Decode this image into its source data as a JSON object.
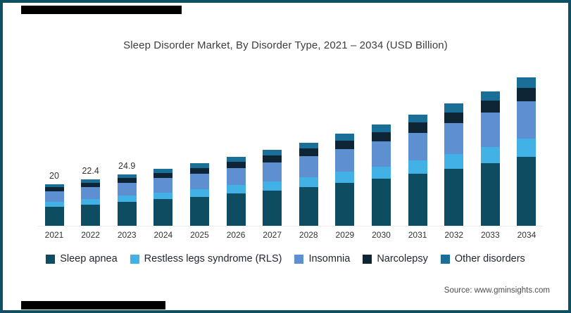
{
  "theme": {
    "frame_border": "#0d4f63"
  },
  "source": "Source: www.gminsights.com",
  "chart_data": {
    "type": "bar",
    "stacked": true,
    "title": "Sleep Disorder Market, By Disorder Type, 2021 – 2034 (USD Billion)",
    "xlabel": "",
    "ylabel": "USD Billion",
    "ylim": [
      0,
      75
    ],
    "grid": false,
    "legend_position": "bottom",
    "categories": [
      "2021",
      "2022",
      "2023",
      "2024",
      "2025",
      "2026",
      "2027",
      "2028",
      "2029",
      "2030",
      "2031",
      "2032",
      "2033",
      "2034"
    ],
    "totals": [
      20,
      22.4,
      24.9,
      27.4,
      30.1,
      33.1,
      36.4,
      40.0,
      44.0,
      48.4,
      53.2,
      58.5,
      64.4,
      70.8
    ],
    "value_labels": [
      "20",
      "22.4",
      "24.9",
      "",
      "",
      "",
      "",
      "",
      "",
      "",
      "",
      "",
      "",
      ""
    ],
    "series": [
      {
        "name": "Sleep apnea",
        "color": "#0e4d61",
        "values": [
          9.4,
          10.5,
          11.7,
          12.9,
          14.1,
          15.6,
          17.1,
          18.8,
          20.7,
          22.7,
          25.0,
          27.5,
          30.3,
          33.3
        ]
      },
      {
        "name": "Restless legs syndrome (RLS)",
        "color": "#41b1e6",
        "values": [
          2.4,
          2.7,
          3.0,
          3.3,
          3.6,
          4.0,
          4.4,
          4.8,
          5.3,
          5.8,
          6.4,
          7.0,
          7.7,
          8.5
        ]
      },
      {
        "name": "Insomnia",
        "color": "#5e8fd0",
        "values": [
          5.0,
          5.6,
          6.2,
          6.9,
          7.5,
          8.3,
          9.1,
          10.0,
          11.0,
          12.1,
          13.3,
          14.6,
          16.1,
          17.7
        ]
      },
      {
        "name": "Narcolepsy",
        "color": "#0e2536",
        "values": [
          1.8,
          2.0,
          2.2,
          2.5,
          2.7,
          3.0,
          3.3,
          3.6,
          4.0,
          4.4,
          4.8,
          5.3,
          5.8,
          6.4
        ]
      },
      {
        "name": "Other disorders",
        "color": "#1a6f99",
        "values": [
          1.4,
          1.6,
          1.8,
          1.9,
          2.1,
          2.3,
          2.6,
          2.8,
          3.1,
          3.4,
          3.7,
          4.1,
          4.5,
          5.0
        ]
      }
    ]
  }
}
